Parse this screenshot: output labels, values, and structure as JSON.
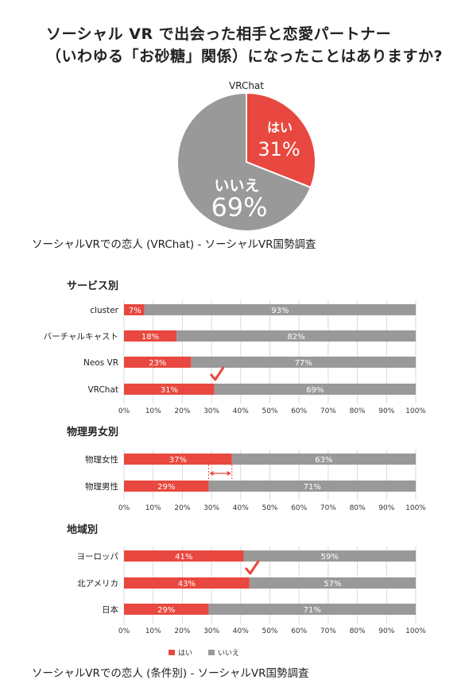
{
  "title_line1": "ソーシャル VR で出会った相手と恋愛パートナー",
  "title_line2": "（いわゆる「お砂糖」関係）になったことはありますか?",
  "colors": {
    "yes": "#e8483f",
    "no": "#999999",
    "track": "#999999"
  },
  "chart_data": [
    {
      "type": "pie",
      "title": "VRChat",
      "slices": [
        {
          "label": "はい",
          "value": 31,
          "display": "31%",
          "color": "#e8483f"
        },
        {
          "label": "いいえ",
          "value": 69,
          "display": "69%",
          "color": "#999999"
        }
      ]
    },
    {
      "type": "bar",
      "orientation": "horizontal",
      "stacked": true,
      "title": "サービス別",
      "categories": [
        "cluster",
        "バーチャルキャスト",
        "Neos VR",
        "VRChat"
      ],
      "series": [
        {
          "name": "はい",
          "values": [
            7,
            18,
            23,
            31
          ]
        },
        {
          "name": "いいえ",
          "values": [
            93,
            82,
            77,
            69
          ]
        }
      ],
      "xlim": [
        0,
        100
      ],
      "ticks": [
        "0%",
        "10%",
        "20%",
        "30%",
        "40%",
        "50%",
        "60%",
        "70%",
        "80%",
        "90%",
        "100%"
      ],
      "checkmark_category": "VRChat"
    },
    {
      "type": "bar",
      "orientation": "horizontal",
      "stacked": true,
      "title": "物理男女別",
      "categories": [
        "物理女性",
        "物理男性"
      ],
      "series": [
        {
          "name": "はい",
          "values": [
            37,
            29
          ]
        },
        {
          "name": "いいえ",
          "values": [
            63,
            71
          ]
        }
      ],
      "xlim": [
        0,
        100
      ],
      "ticks": [
        "0%",
        "10%",
        "20%",
        "30%",
        "40%",
        "50%",
        "60%",
        "70%",
        "80%",
        "90%",
        "100%"
      ],
      "gap_annotation": {
        "from": 29,
        "to": 37
      }
    },
    {
      "type": "bar",
      "orientation": "horizontal",
      "stacked": true,
      "title": "地域別",
      "categories": [
        "ヨーロッパ",
        "北アメリカ",
        "日本"
      ],
      "series": [
        {
          "name": "はい",
          "values": [
            41,
            43,
            29
          ]
        },
        {
          "name": "いいえ",
          "values": [
            59,
            57,
            71
          ]
        }
      ],
      "xlim": [
        0,
        100
      ],
      "ticks": [
        "0%",
        "10%",
        "20%",
        "30%",
        "40%",
        "50%",
        "60%",
        "70%",
        "80%",
        "90%",
        "100%"
      ],
      "checkmark_category": "北アメリカ"
    }
  ],
  "legend": {
    "yes": "はい",
    "no": "いいえ",
    "placement": "bottom-left"
  },
  "caption_top": "ソーシャルVRでの恋人 (VRChat) - ソーシャルVR国勢調査",
  "caption_bottom": "ソーシャルVRでの恋人 (条件別) - ソーシャルVR国勢調査"
}
